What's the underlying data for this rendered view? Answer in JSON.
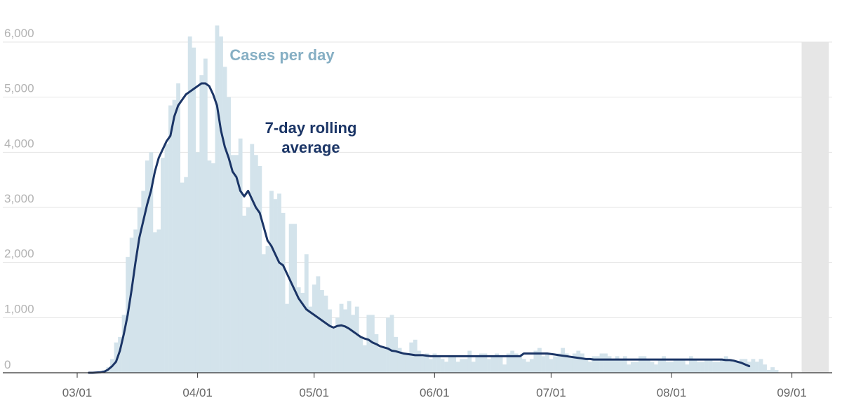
{
  "chart_data": {
    "type": "bar",
    "title": "",
    "xlabel": "",
    "ylabel": "",
    "ylim": [
      0,
      6000
    ],
    "y_ticks": [
      {
        "value": 0,
        "label": "0"
      },
      {
        "value": 1000,
        "label": "1,000"
      },
      {
        "value": 2000,
        "label": "2,000"
      },
      {
        "value": 3000,
        "label": "3,000"
      },
      {
        "value": 4000,
        "label": "4,000"
      },
      {
        "value": 5000,
        "label": "5,000"
      },
      {
        "value": 6000,
        "label": "6,000"
      }
    ],
    "x_ticks": [
      {
        "value": "2020-03-01",
        "label": "03/01"
      },
      {
        "value": "2020-04-01",
        "label": "04/01"
      },
      {
        "value": "2020-05-01",
        "label": "05/01"
      },
      {
        "value": "2020-06-01",
        "label": "06/01"
      },
      {
        "value": "2020-07-01",
        "label": "07/01"
      },
      {
        "value": "2020-08-01",
        "label": "08/01"
      },
      {
        "value": "2020-09-01",
        "label": "09/01"
      }
    ],
    "grid": "horizontal",
    "shaded_region": {
      "start": "2020-09-04",
      "end": "2020-09-10",
      "color": "#e6e6e6"
    },
    "colors": {
      "bars": "#d3e3eb",
      "line": "#1b3566",
      "bar_label": "#86afc4",
      "line_label": "#1b3566"
    },
    "start_date": "2020-03-04",
    "series": [
      {
        "name": "Cases per day",
        "type": "bar",
        "values": [
          0,
          0,
          10,
          20,
          50,
          100,
          250,
          550,
          650,
          1050,
          2100,
          2450,
          2600,
          3000,
          3300,
          3850,
          4000,
          2550,
          2600,
          3900,
          4150,
          4850,
          4950,
          5250,
          3450,
          3550,
          6100,
          5900,
          4000,
          5400,
          5700,
          3850,
          3800,
          6300,
          6100,
          5550,
          5000,
          3950,
          3950,
          4250,
          2850,
          3000,
          4150,
          3950,
          3750,
          2150,
          2300,
          3300,
          3150,
          3250,
          2900,
          1250,
          2700,
          2700,
          1550,
          1450,
          2150,
          1200,
          1600,
          1750,
          1500,
          1400,
          1150,
          800,
          1000,
          1250,
          1150,
          1300,
          1050,
          1200,
          650,
          500,
          1050,
          1050,
          700,
          450,
          450,
          1000,
          1050,
          650,
          450,
          350,
          350,
          550,
          600,
          400,
          300,
          350,
          250,
          350,
          300,
          250,
          200,
          300,
          300,
          200,
          250,
          250,
          400,
          200,
          300,
          350,
          350,
          250,
          300,
          350,
          300,
          150,
          350,
          400,
          350,
          300,
          250,
          200,
          250,
          400,
          450,
          300,
          350,
          250,
          300,
          350,
          450,
          350,
          300,
          350,
          400,
          350,
          250,
          200,
          300,
          300,
          350,
          350,
          300,
          250,
          300,
          250,
          300,
          150,
          200,
          200,
          300,
          300,
          250,
          200,
          150,
          250,
          300,
          200,
          200,
          250,
          250,
          250,
          150,
          300,
          250,
          200,
          200,
          250,
          250,
          200,
          200,
          250,
          300,
          250,
          200,
          200,
          250,
          250,
          200,
          250,
          200,
          250,
          150,
          50,
          100,
          50
        ]
      },
      {
        "name": "7-day rolling average",
        "type": "line",
        "values": [
          0,
          0,
          5,
          10,
          20,
          60,
          120,
          200,
          400,
          700,
          1050,
          1500,
          2000,
          2450,
          2750,
          3050,
          3300,
          3650,
          3900,
          4050,
          4200,
          4300,
          4650,
          4850,
          4950,
          5050,
          5100,
          5150,
          5200,
          5250,
          5250,
          5200,
          5050,
          4850,
          4400,
          4100,
          3900,
          3650,
          3550,
          3300,
          3200,
          3300,
          3150,
          3000,
          2900,
          2650,
          2400,
          2300,
          2150,
          2000,
          1950,
          1800,
          1650,
          1500,
          1350,
          1250,
          1150,
          1100,
          1050,
          1000,
          950,
          900,
          850,
          820,
          850,
          860,
          840,
          800,
          750,
          700,
          650,
          620,
          600,
          550,
          520,
          480,
          460,
          440,
          400,
          390,
          370,
          350,
          340,
          330,
          320,
          320,
          320,
          310,
          300,
          300,
          300,
          300,
          300,
          300,
          300,
          300,
          300,
          300,
          300,
          300,
          300,
          300,
          300,
          300,
          300,
          300,
          300,
          300,
          300,
          300,
          300,
          300,
          350,
          350,
          350,
          350,
          350,
          350,
          350,
          340,
          330,
          320,
          310,
          300,
          290,
          280,
          270,
          260,
          250,
          250,
          240,
          240,
          240,
          240,
          240,
          240,
          240,
          240,
          240,
          240,
          240,
          240,
          240,
          240,
          240,
          240,
          240,
          240,
          240,
          240,
          240,
          240,
          240,
          240,
          240,
          240,
          240,
          240,
          240,
          240,
          240,
          240,
          240,
          240,
          230,
          230,
          220,
          200,
          180,
          150,
          120
        ]
      }
    ]
  },
  "labels": {
    "bars": "Cases per day",
    "line_1": "7-day rolling",
    "line_2": "average"
  }
}
